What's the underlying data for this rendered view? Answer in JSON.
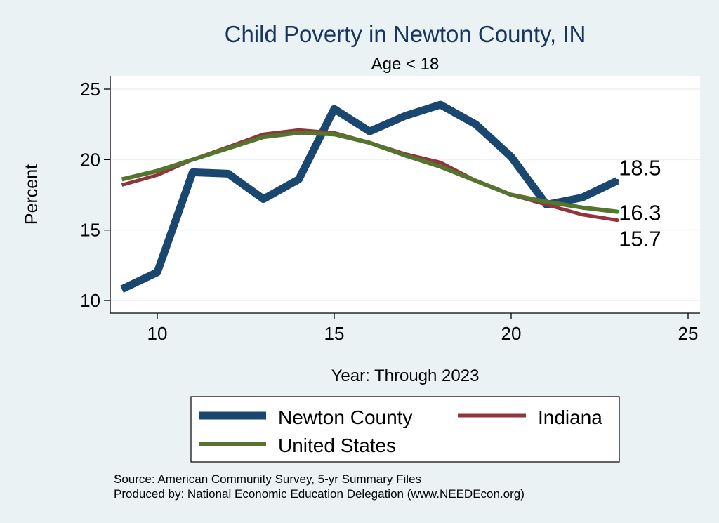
{
  "chart_data": {
    "type": "line",
    "title": "Child Poverty in Newton County, IN",
    "subtitle": "Age < 18",
    "xlabel": "Year: Through 2023",
    "ylabel": "Percent",
    "xlim": [
      9,
      25
    ],
    "ylim": [
      10,
      25
    ],
    "xticks": [
      "10",
      "15",
      "20",
      "25"
    ],
    "yticks": [
      "10",
      "15",
      "20",
      "25"
    ],
    "grid": true,
    "legend": "bottom",
    "series": [
      {
        "name": "Newton County",
        "color": "#1a476f",
        "x": [
          9,
          10,
          11,
          12,
          13,
          14,
          15,
          16,
          17,
          18,
          19,
          20,
          21,
          22,
          23
        ],
        "values": [
          10.8,
          12.0,
          19.1,
          19.0,
          17.2,
          18.6,
          23.6,
          22.0,
          23.1,
          23.9,
          22.5,
          20.2,
          16.8,
          17.3,
          18.5
        ],
        "end_label": "18.5"
      },
      {
        "name": "Indiana",
        "color": "#90353b",
        "x": [
          9,
          10,
          11,
          12,
          13,
          14,
          15,
          16,
          17,
          18,
          19,
          20,
          21,
          22,
          23
        ],
        "values": [
          18.2,
          18.9,
          20.0,
          20.9,
          21.8,
          22.1,
          21.9,
          21.2,
          20.4,
          19.8,
          18.5,
          17.5,
          16.8,
          16.1,
          15.7
        ],
        "end_label": "15.7"
      },
      {
        "name": "United States",
        "color": "#55752f",
        "x": [
          9,
          10,
          11,
          12,
          13,
          14,
          15,
          16,
          17,
          18,
          19,
          20,
          21,
          22,
          23
        ],
        "values": [
          18.6,
          19.2,
          20.0,
          20.8,
          21.6,
          21.9,
          21.8,
          21.2,
          20.3,
          19.5,
          18.5,
          17.5,
          17.0,
          16.6,
          16.3
        ],
        "end_label": "16.3"
      }
    ],
    "notes": [
      "Source: American Community Survey, 5-yr Summary Files",
      "Produced by: National Economic Education Delegation (www.NEEDEcon.org)"
    ]
  }
}
